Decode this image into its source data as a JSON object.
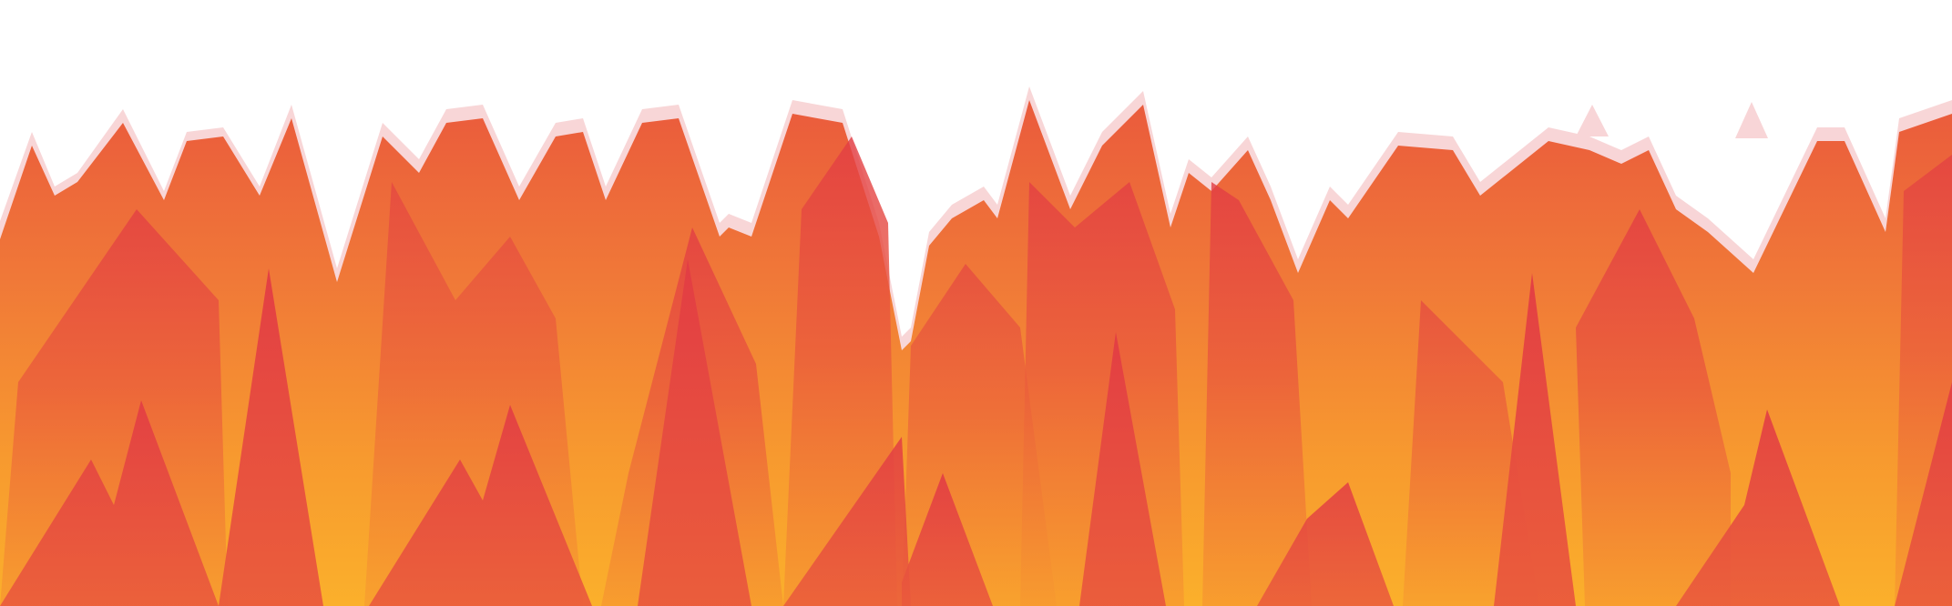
{
  "artwork": {
    "kind": "flame-banner",
    "colors": {
      "background": "#ffffff",
      "crimson": "#e23c44",
      "red_orange": "#ea5a3c",
      "orange": "#f07838",
      "amber": "#f7992f",
      "gold": "#fbb02b",
      "halo": "#f3b4b7"
    }
  }
}
